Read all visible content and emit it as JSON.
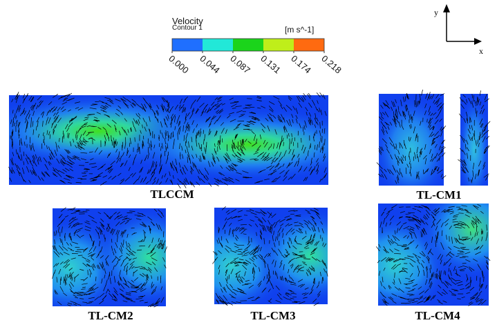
{
  "legend": {
    "title": "Velocity",
    "subtitle": "Contour 1",
    "unit": "[m s^-1]",
    "ticks": [
      "0.000",
      "0.044",
      "0.087",
      "0.131",
      "0.174",
      "0.218"
    ],
    "colors": [
      "#1f6fff",
      "#22e8d8",
      "#1bd41b",
      "#bfee1a",
      "#ff6a10"
    ]
  },
  "axes": {
    "y_label": "y",
    "x_label": "x"
  },
  "panels": [
    {
      "id": "tlccm",
      "label": "TLCCM"
    },
    {
      "id": "tlcm1",
      "label": "TL-CM1"
    },
    {
      "id": "tlcm2",
      "label": "TL-CM2"
    },
    {
      "id": "tlcm3",
      "label": "TL-CM3"
    },
    {
      "id": "tlcm4",
      "label": "TL-CM4"
    }
  ],
  "colors": {
    "field_base": "#1040ee",
    "field_mid": "#30b0f0",
    "field_high": "#20d050",
    "arrow": "#000000"
  }
}
